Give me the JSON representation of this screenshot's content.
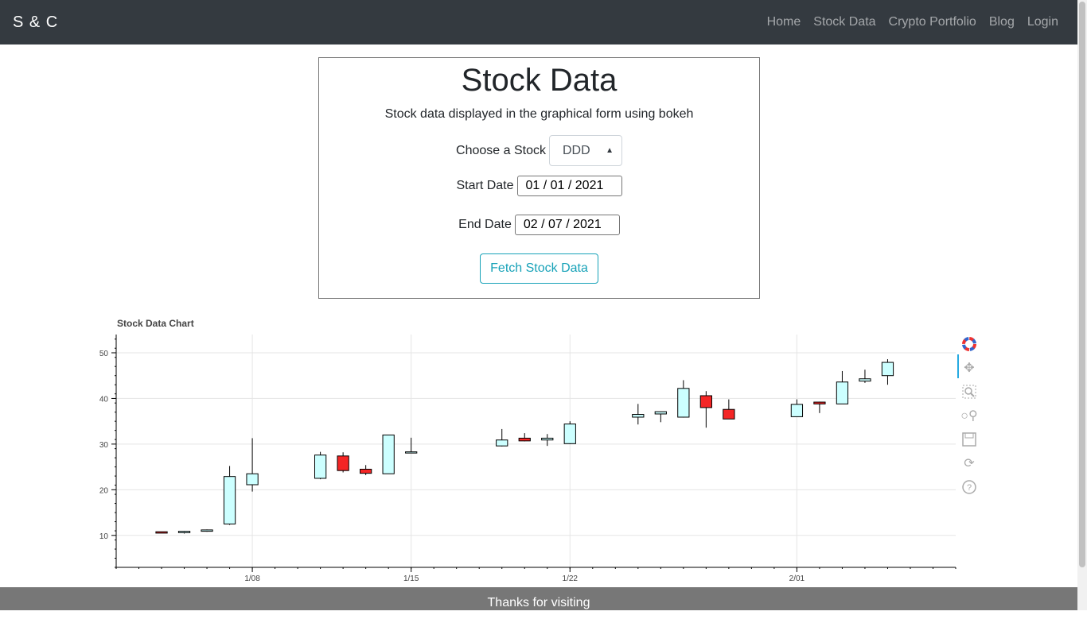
{
  "nav": {
    "brand": "S & C",
    "links": [
      "Home",
      "Stock Data",
      "Crypto Portfolio",
      "Blog",
      "Login"
    ]
  },
  "card": {
    "title": "Stock Data",
    "subtitle": "Stock data displayed in the graphical form using bokeh",
    "stock_label": "Choose a Stock",
    "stock_value": "DDD",
    "start_label": "Start Date",
    "start_value": "01 / 01 / 2021",
    "end_label": "End Date",
    "end_value": "02 / 07 / 2021",
    "button": "Fetch Stock Data"
  },
  "footer": "Thanks for visiting",
  "colors": {
    "increase": "#ccffff",
    "decrease": "#f42525"
  },
  "chart_data": {
    "type": "candlestick",
    "title": "Stock Data Chart",
    "ylim": [
      3,
      54
    ],
    "y_ticks": [
      10,
      20,
      30,
      40,
      50
    ],
    "x_tick_labels": [
      {
        "date": "2021-01-08",
        "label": "1/08"
      },
      {
        "date": "2021-01-15",
        "label": "1/15"
      },
      {
        "date": "2021-01-22",
        "label": "1/22"
      },
      {
        "date": "2021-02-01",
        "label": "2/01"
      }
    ],
    "xlim": [
      "2021-01-02",
      "2021-02-08"
    ],
    "grid": true,
    "candles": [
      {
        "date": "2021-01-04",
        "open": 10.8,
        "high": 10.8,
        "low": 10.5,
        "close": 10.5
      },
      {
        "date": "2021-01-05",
        "open": 10.6,
        "high": 11.0,
        "low": 10.4,
        "close": 10.9
      },
      {
        "date": "2021-01-06",
        "open": 10.9,
        "high": 11.3,
        "low": 10.8,
        "close": 11.2
      },
      {
        "date": "2021-01-07",
        "open": 12.5,
        "high": 25.2,
        "low": 12.3,
        "close": 22.9
      },
      {
        "date": "2021-01-08",
        "open": 21.1,
        "high": 31.3,
        "low": 19.6,
        "close": 23.5
      },
      {
        "date": "2021-01-11",
        "open": 22.5,
        "high": 28.3,
        "low": 22.3,
        "close": 27.6
      },
      {
        "date": "2021-01-12",
        "open": 27.4,
        "high": 28.2,
        "low": 23.8,
        "close": 24.2
      },
      {
        "date": "2021-01-13",
        "open": 24.5,
        "high": 25.4,
        "low": 23.2,
        "close": 23.6
      },
      {
        "date": "2021-01-14",
        "open": 23.5,
        "high": 32.0,
        "low": 23.5,
        "close": 32.0
      },
      {
        "date": "2021-01-15",
        "open": 28.2,
        "high": 31.4,
        "low": 28.0,
        "close": 28.3
      },
      {
        "date": "2021-01-19",
        "open": 29.6,
        "high": 33.3,
        "low": 29.5,
        "close": 30.9
      },
      {
        "date": "2021-01-20",
        "open": 31.3,
        "high": 32.4,
        "low": 30.6,
        "close": 30.7
      },
      {
        "date": "2021-01-21",
        "open": 30.9,
        "high": 32.2,
        "low": 29.6,
        "close": 31.3
      },
      {
        "date": "2021-01-22",
        "open": 30.1,
        "high": 35.0,
        "low": 30.0,
        "close": 34.4
      },
      {
        "date": "2021-01-25",
        "open": 35.9,
        "high": 38.8,
        "low": 34.3,
        "close": 36.5
      },
      {
        "date": "2021-01-26",
        "open": 36.6,
        "high": 37.1,
        "low": 34.8,
        "close": 37.1
      },
      {
        "date": "2021-01-27",
        "open": 35.9,
        "high": 44.0,
        "low": 35.8,
        "close": 42.2
      },
      {
        "date": "2021-01-28",
        "open": 40.6,
        "high": 41.6,
        "low": 33.6,
        "close": 38.0
      },
      {
        "date": "2021-01-29",
        "open": 37.6,
        "high": 39.8,
        "low": 35.5,
        "close": 35.5
      },
      {
        "date": "2021-02-01",
        "open": 36.0,
        "high": 39.8,
        "low": 36.0,
        "close": 38.7
      },
      {
        "date": "2021-02-02",
        "open": 39.2,
        "high": 39.3,
        "low": 36.8,
        "close": 38.8
      },
      {
        "date": "2021-02-03",
        "open": 38.8,
        "high": 46.0,
        "low": 38.8,
        "close": 43.6
      },
      {
        "date": "2021-02-04",
        "open": 43.8,
        "high": 46.3,
        "low": 43.4,
        "close": 44.3
      },
      {
        "date": "2021-02-05",
        "open": 45.0,
        "high": 48.6,
        "low": 43.0,
        "close": 47.9
      }
    ]
  }
}
